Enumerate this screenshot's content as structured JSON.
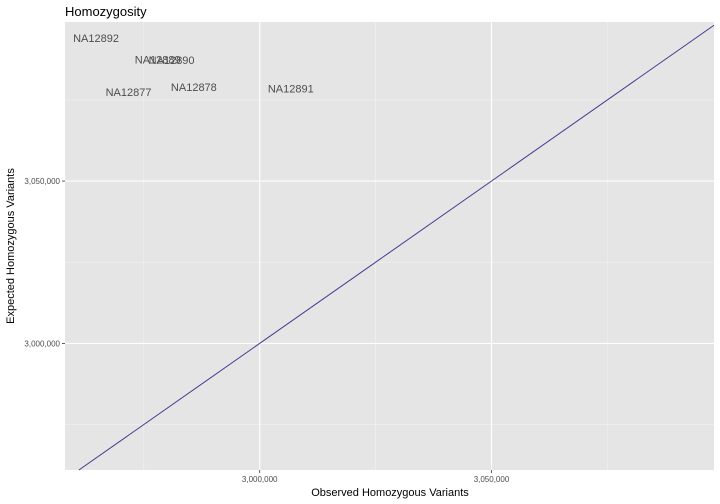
{
  "chart_data": {
    "type": "scatter",
    "title": "Homozygosity",
    "xlabel": "Observed Homozygous Variants",
    "ylabel": "Expected Homozygous Variants",
    "xlim": [
      2958000,
      3098000
    ],
    "ylim": [
      2961000,
      3099000
    ],
    "x_ticks": [
      3000000,
      3050000
    ],
    "x_tick_labels": [
      "3,000,000",
      "3,050,000"
    ],
    "y_ticks": [
      3000000,
      3050000
    ],
    "y_tick_labels": [
      "3,000,000",
      "3,050,000"
    ],
    "grid": true,
    "reference_line": {
      "slope": 1,
      "intercept": 0,
      "color": "#3f3a8f"
    },
    "points": [
      {
        "label": "NA12892",
        "x": 2964700,
        "y": 3094100
      },
      {
        "label": "NA12889",
        "x": 2978000,
        "y": 3087500
      },
      {
        "label": "NA12890",
        "x": 2981000,
        "y": 3087300
      },
      {
        "label": "NA12878",
        "x": 2985800,
        "y": 3079000
      },
      {
        "label": "NA12877",
        "x": 2971700,
        "y": 3077500
      },
      {
        "label": "NA12891",
        "x": 3006700,
        "y": 3078500
      }
    ],
    "colors": {
      "panel": "#e5e5e5",
      "grid_major": "#ffffff",
      "grid_minor": "#f2f2f2",
      "text": "#4d4d4d"
    }
  }
}
